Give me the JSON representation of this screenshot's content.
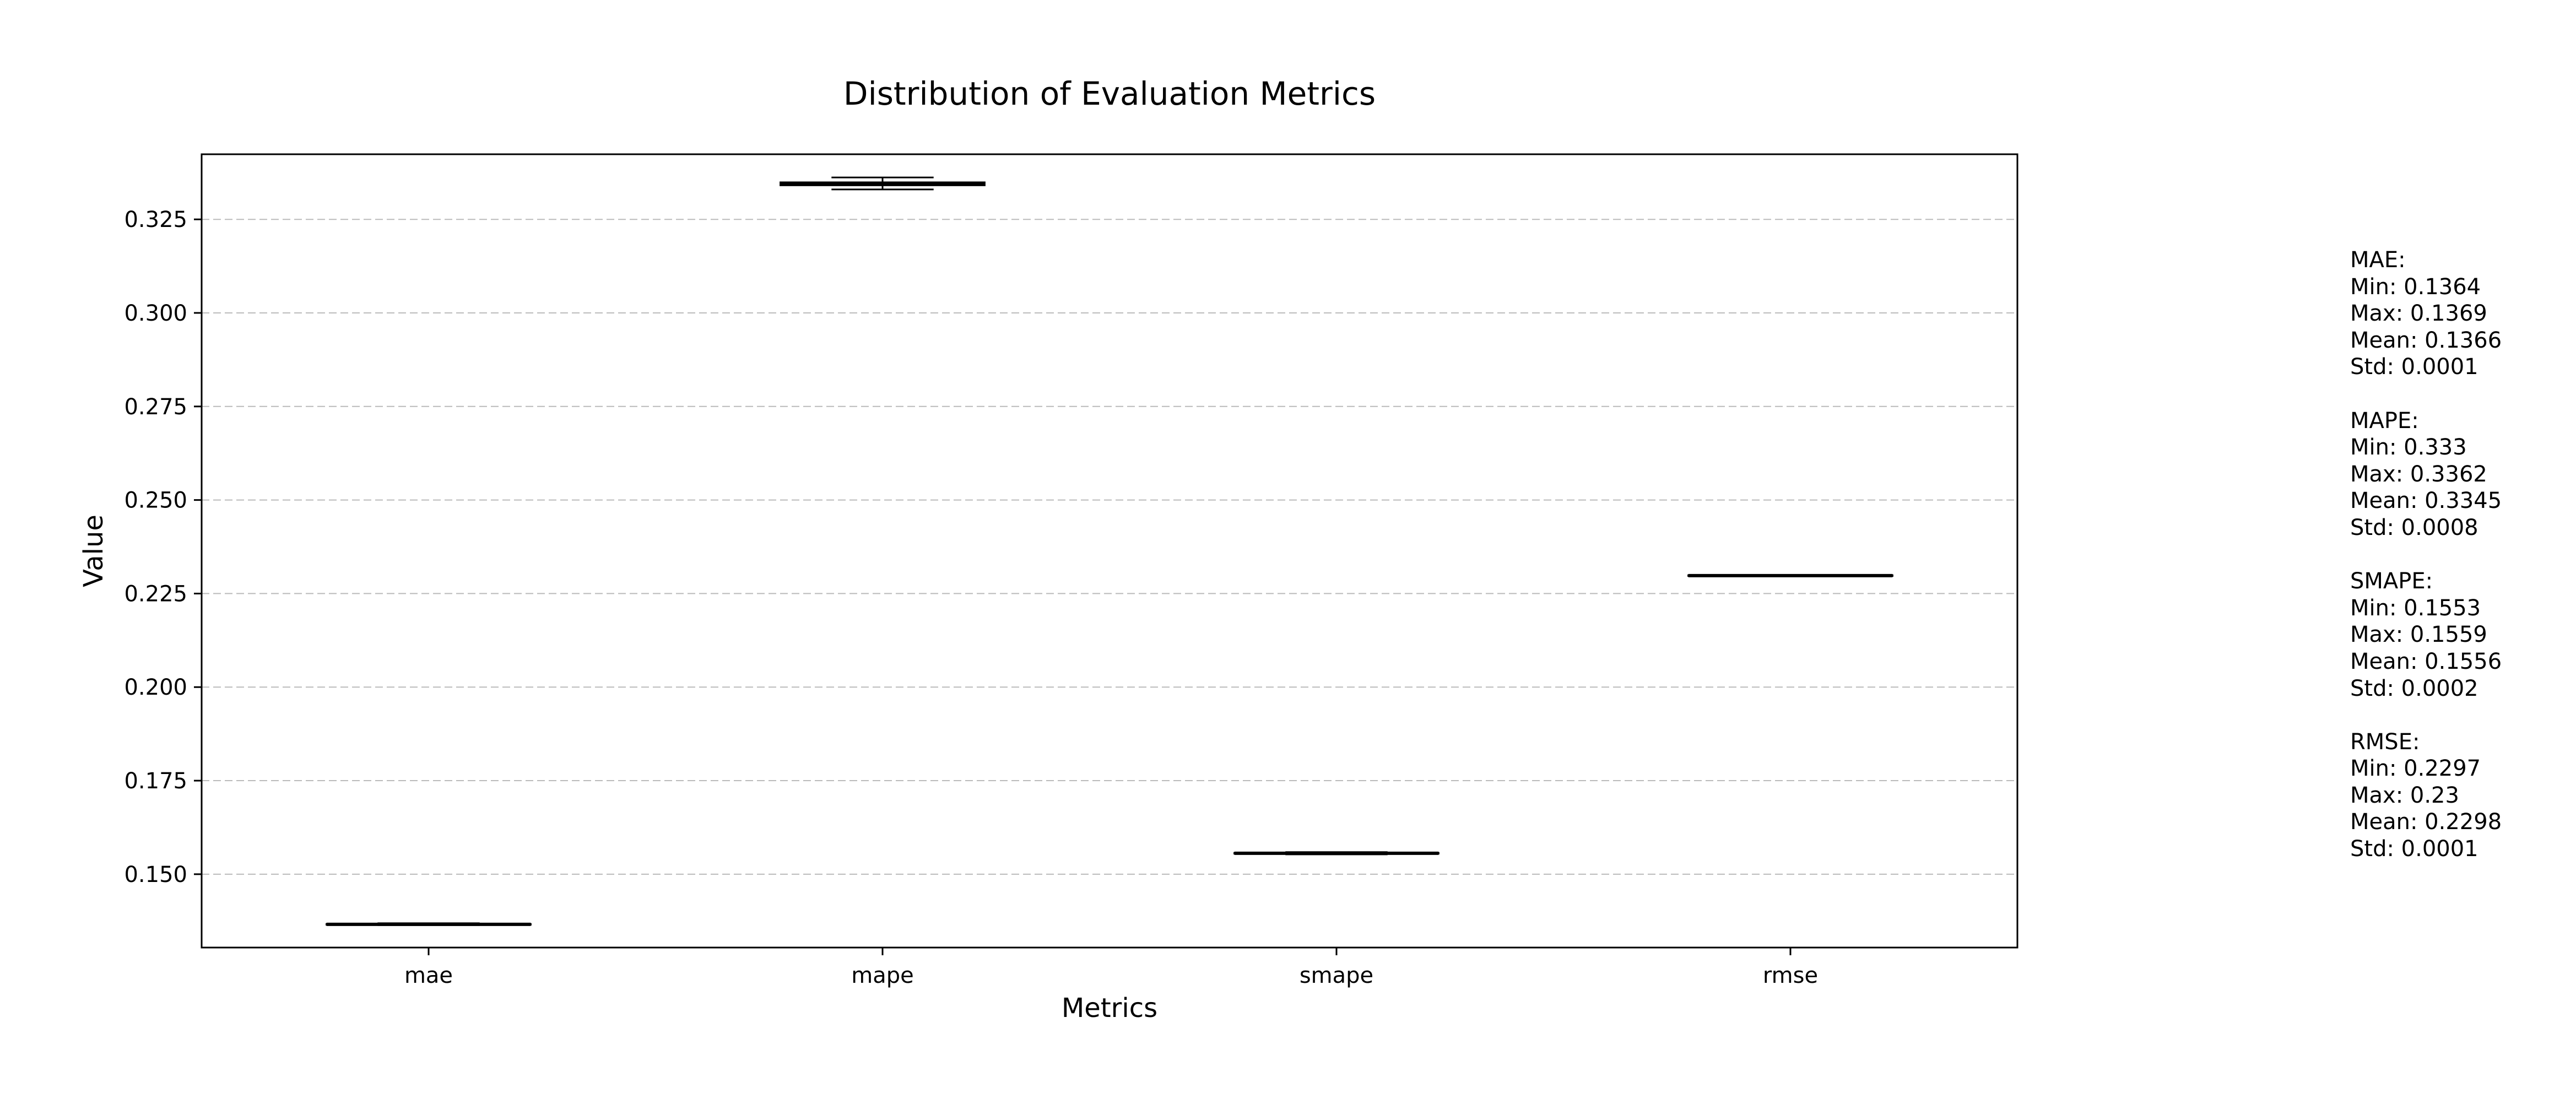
{
  "chart_data": {
    "type": "box",
    "title": "Distribution of Evaluation Metrics",
    "xlabel": "Metrics",
    "ylabel": "Value",
    "categories": [
      "mae",
      "mape",
      "smape",
      "rmse"
    ],
    "ylim": [
      0.1304,
      0.3424
    ],
    "yticks": [
      0.15,
      0.175,
      0.2,
      0.225,
      0.25,
      0.275,
      0.3,
      0.325
    ],
    "ytick_labels": [
      "0.150",
      "0.175",
      "0.200",
      "0.225",
      "0.250",
      "0.275",
      "0.300",
      "0.325"
    ],
    "grid": "y, dashed",
    "boxes": [
      {
        "label": "mae",
        "whisker_low": 0.1364,
        "q1": 0.1365,
        "median": 0.1366,
        "q3": 0.1367,
        "whisker_high": 0.1369
      },
      {
        "label": "mape",
        "whisker_low": 0.333,
        "q1": 0.3341,
        "median": 0.3345,
        "q3": 0.3349,
        "whisker_high": 0.3362
      },
      {
        "label": "smape",
        "whisker_low": 0.1553,
        "q1": 0.1555,
        "median": 0.1556,
        "q3": 0.1557,
        "whisker_high": 0.1559
      },
      {
        "label": "rmse",
        "whisker_low": 0.2297,
        "q1": 0.2297,
        "median": 0.2298,
        "q3": 0.2299,
        "whisker_high": 0.23
      }
    ],
    "colors": {
      "box": "#000000",
      "grid": "#bbbbbb"
    }
  },
  "stats": [
    {
      "lines": [
        "MAE:",
        "Min: 0.1364",
        "Max: 0.1369",
        "Mean: 0.1366",
        "Std: 0.0001"
      ]
    },
    {
      "lines": [
        "MAPE:",
        "Min: 0.333",
        "Max: 0.3362",
        "Mean: 0.3345",
        "Std: 0.0008"
      ]
    },
    {
      "lines": [
        "SMAPE:",
        "Min: 0.1553",
        "Max: 0.1559",
        "Mean: 0.1556",
        "Std: 0.0002"
      ]
    },
    {
      "lines": [
        "RMSE:",
        "Min: 0.2297",
        "Max: 0.23",
        "Mean: 0.2298",
        "Std: 0.0001"
      ]
    }
  ]
}
